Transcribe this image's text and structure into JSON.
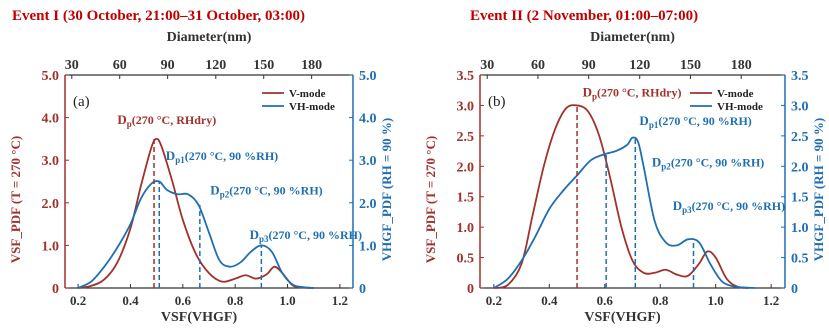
{
  "colors": {
    "v_mode": "#a0322c",
    "vh_mode": "#1f6fb0",
    "title": "#c00000",
    "text": "#333333"
  },
  "chart_data": [
    {
      "type": "line",
      "title": "Event I (30 October, 21:00–31 October, 03:00)",
      "panel": "(a)",
      "xlabel": "VSF(VHGF)",
      "top_xlabel": "Diameter(nm)",
      "ylabel_left": "VSF_PDF (T = 270 °C)",
      "ylabel_right": "VHGF_PDF (RH = 90 %)",
      "xlim": [
        0.15,
        1.25
      ],
      "ylim_left": [
        0,
        5
      ],
      "ylim_right": [
        0,
        5
      ],
      "x_ticks": [
        "0.2",
        "0.4",
        "0.6",
        "0.8",
        "1.0",
        "1.2"
      ],
      "x_tick_values": [
        0.2,
        0.4,
        0.6,
        0.8,
        1.0,
        1.2
      ],
      "y_left_ticks": [
        "0",
        "1.0",
        "2.0",
        "3.0",
        "4.0",
        "5.0"
      ],
      "y_left_tick_values": [
        0,
        1,
        2,
        3,
        4,
        5
      ],
      "y_right_ticks": [
        "0",
        "1.0",
        "2.0",
        "3.0",
        "4.0",
        "5.0"
      ],
      "y_right_tick_values": [
        0,
        1,
        2,
        3,
        4,
        5
      ],
      "top_ticks": [
        "30",
        "60",
        "90",
        "120",
        "150",
        "180"
      ],
      "top_tick_positions": [
        0.176,
        0.359,
        0.542,
        0.726,
        0.909,
        1.092
      ],
      "grid": false,
      "legend": {
        "position": "top-right",
        "entries": [
          {
            "label": "V-mode",
            "series": "V-mode"
          },
          {
            "label": "VH-mode",
            "series": "VH-mode"
          }
        ]
      },
      "series": [
        {
          "name": "V-mode",
          "axis": "left",
          "x": [
            0.2,
            0.25,
            0.3,
            0.35,
            0.4,
            0.44,
            0.48,
            0.5,
            0.52,
            0.56,
            0.6,
            0.65,
            0.7,
            0.75,
            0.8,
            0.84,
            0.88,
            0.92,
            0.95,
            0.98,
            1.02,
            1.06,
            1.1
          ],
          "y": [
            0,
            0.05,
            0.2,
            0.6,
            1.4,
            2.4,
            3.3,
            3.5,
            3.3,
            2.5,
            1.6,
            0.8,
            0.35,
            0.15,
            0.22,
            0.3,
            0.22,
            0.32,
            0.5,
            0.35,
            0.06,
            0.01,
            0
          ]
        },
        {
          "name": "VH-mode",
          "axis": "right",
          "x": [
            0.2,
            0.25,
            0.3,
            0.35,
            0.4,
            0.44,
            0.48,
            0.51,
            0.54,
            0.58,
            0.62,
            0.66,
            0.7,
            0.74,
            0.78,
            0.82,
            0.86,
            0.9,
            0.94,
            0.98,
            1.02,
            1.06,
            1.1
          ],
          "y": [
            0,
            0.15,
            0.5,
            0.95,
            1.5,
            2.1,
            2.45,
            2.5,
            2.3,
            2.2,
            2.2,
            1.95,
            1.3,
            0.65,
            0.5,
            0.6,
            0.85,
            1.0,
            0.85,
            0.35,
            0.08,
            0.02,
            0
          ]
        }
      ],
      "markers": [
        {
          "x": 0.49,
          "y": 3.5,
          "series": "V-mode"
        },
        {
          "x": 0.51,
          "y": 2.5,
          "series": "VH-mode"
        },
        {
          "x": 0.665,
          "y": 1.95,
          "series": "VH-mode"
        },
        {
          "x": 0.9,
          "y": 1.0,
          "series": "VH-mode"
        }
      ],
      "annotations": [
        {
          "label": "D",
          "sub": "p",
          "text": "(270 °C, RHdry)",
          "color": "v_mode",
          "x": 0.35,
          "y": 3.85
        },
        {
          "label": "D",
          "sub": "p1",
          "text": "(270 °C, 90 %RH)",
          "color": "vh_mode",
          "x": 0.535,
          "y": 3.0
        },
        {
          "label": "D",
          "sub": "p2",
          "text": "(270 °C, 90 %RH)",
          "color": "vh_mode",
          "x": 0.705,
          "y": 2.2
        },
        {
          "label": "D",
          "sub": "p3",
          "text": "(270 °C, 90 %RH)",
          "color": "vh_mode",
          "x": 0.855,
          "y": 1.15
        }
      ]
    },
    {
      "type": "line",
      "title": "Event II (2 November, 01:00–07:00)",
      "panel": "(b)",
      "xlabel": "VSF(VHGF)",
      "top_xlabel": "Diameter(nm)",
      "ylabel_left": "VSF_PDF (T = 270 °C)",
      "ylabel_right": "VHGF_PDF (RH = 90 %)",
      "xlim": [
        0.15,
        1.25
      ],
      "ylim_left": [
        0,
        3.5
      ],
      "ylim_right": [
        0,
        3.5
      ],
      "x_ticks": [
        "0.2",
        "0.4",
        "0.6",
        "0.8",
        "1.0",
        "1.2"
      ],
      "x_tick_values": [
        0.2,
        0.4,
        0.6,
        0.8,
        1.0,
        1.2
      ],
      "y_left_ticks": [
        "0",
        "0.5",
        "1.0",
        "1.5",
        "2.0",
        "2.5",
        "3.0",
        "3.5"
      ],
      "y_left_tick_values": [
        0,
        0.5,
        1.0,
        1.5,
        2.0,
        2.5,
        3.0,
        3.5
      ],
      "y_right_ticks": [
        "0",
        "0.5",
        "1.0",
        "1.5",
        "2.0",
        "2.5",
        "3.0",
        "3.5"
      ],
      "y_right_tick_values": [
        0,
        0.5,
        1.0,
        1.5,
        2.0,
        2.5,
        3.0,
        3.5
      ],
      "top_ticks": [
        "30",
        "60",
        "90",
        "120",
        "150",
        "180"
      ],
      "top_tick_positions": [
        0.176,
        0.359,
        0.542,
        0.726,
        0.909,
        1.092
      ],
      "grid": false,
      "legend": {
        "position": "top-right",
        "entries": [
          {
            "label": "V-mode",
            "series": "V-mode"
          },
          {
            "label": "VH-mode",
            "series": "VH-mode"
          }
        ]
      },
      "series": [
        {
          "name": "V-mode",
          "axis": "left",
          "x": [
            0.2,
            0.25,
            0.3,
            0.34,
            0.38,
            0.42,
            0.46,
            0.5,
            0.54,
            0.58,
            0.62,
            0.66,
            0.7,
            0.74,
            0.78,
            0.82,
            0.86,
            0.9,
            0.94,
            0.97,
            1.0,
            1.04,
            1.08,
            1.12
          ],
          "y": [
            0,
            0.05,
            0.4,
            1.2,
            2.0,
            2.6,
            2.95,
            3.0,
            2.9,
            2.5,
            1.8,
            1.0,
            0.45,
            0.25,
            0.25,
            0.3,
            0.22,
            0.2,
            0.4,
            0.6,
            0.5,
            0.15,
            0.02,
            0
          ]
        },
        {
          "name": "VH-mode",
          "axis": "right",
          "x": [
            0.2,
            0.25,
            0.3,
            0.35,
            0.4,
            0.45,
            0.5,
            0.55,
            0.6,
            0.64,
            0.68,
            0.7,
            0.72,
            0.74,
            0.78,
            0.82,
            0.86,
            0.9,
            0.94,
            0.98,
            1.02,
            1.06,
            1.1,
            1.14
          ],
          "y": [
            0,
            0.15,
            0.45,
            0.85,
            1.3,
            1.6,
            1.85,
            2.1,
            2.2,
            2.25,
            2.35,
            2.47,
            2.4,
            2.0,
            1.1,
            0.75,
            0.7,
            0.8,
            0.75,
            0.4,
            0.12,
            0.03,
            0.01,
            0
          ]
        }
      ],
      "markers": [
        {
          "x": 0.5,
          "y": 3.0,
          "series": "V-mode"
        },
        {
          "x": 0.605,
          "y": 2.22,
          "series": "VH-mode"
        },
        {
          "x": 0.71,
          "y": 2.47,
          "series": "VH-mode"
        },
        {
          "x": 0.92,
          "y": 0.8,
          "series": "VH-mode"
        }
      ],
      "annotations": [
        {
          "label": "D",
          "sub": "p",
          "text": "(270 °C, RHdry)",
          "color": "v_mode",
          "x": 0.52,
          "y": 3.15
        },
        {
          "label": "D",
          "sub": "p1",
          "text": "(270 °C, 90 %RH)",
          "color": "vh_mode",
          "x": 0.725,
          "y": 2.68
        },
        {
          "label": "D",
          "sub": "p2",
          "text": "(270 °C, 90 %RH)",
          "color": "vh_mode",
          "x": 0.77,
          "y": 2.0
        },
        {
          "label": "D",
          "sub": "p3",
          "text": "(270 °C, 90 %RH)",
          "color": "vh_mode",
          "x": 0.845,
          "y": 1.28
        }
      ]
    }
  ]
}
